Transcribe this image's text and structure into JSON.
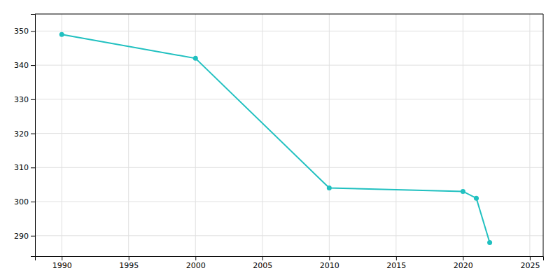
{
  "chart_data": {
    "type": "line",
    "x": [
      1990,
      2000,
      2010,
      2020,
      2021,
      2022
    ],
    "values": [
      349,
      342,
      304,
      303,
      301,
      288
    ],
    "color": "#20C0C0",
    "marker": "circle",
    "xlim": [
      1988,
      2026
    ],
    "xticks": [
      1990,
      1995,
      2000,
      2005,
      2010,
      2015,
      2020,
      2025
    ],
    "ylim": [
      284,
      355
    ],
    "yticks": [
      290,
      300,
      310,
      320,
      330,
      340,
      350
    ],
    "grid": true
  }
}
